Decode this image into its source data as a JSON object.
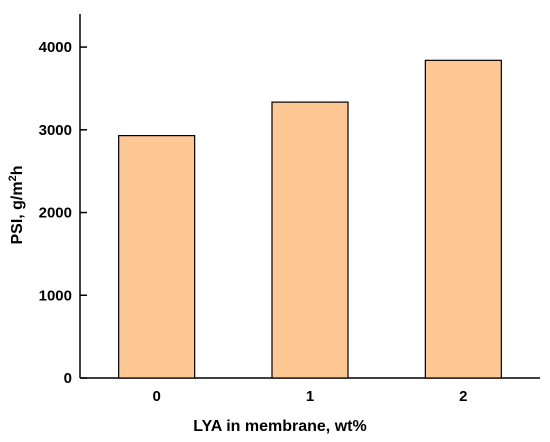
{
  "chart_data": {
    "type": "bar",
    "categories": [
      "0",
      "1",
      "2"
    ],
    "values": [
      2930,
      3335,
      3840
    ],
    "xlabel": "LYA in membrane, wt%",
    "ylabel": {
      "main": "PSI, g/m",
      "sup": "2",
      "tail": "h"
    },
    "ylim": [
      0,
      4400
    ],
    "yticks": [
      0,
      1000,
      2000,
      3000,
      4000
    ],
    "ytick_labels": [
      "0",
      "1000",
      "2000",
      "3000",
      "4000"
    ],
    "grid": false,
    "legend": "none",
    "colors": {
      "bar_fill": "#fdc893",
      "bar_stroke": "#000000",
      "axis": "#000000"
    }
  }
}
